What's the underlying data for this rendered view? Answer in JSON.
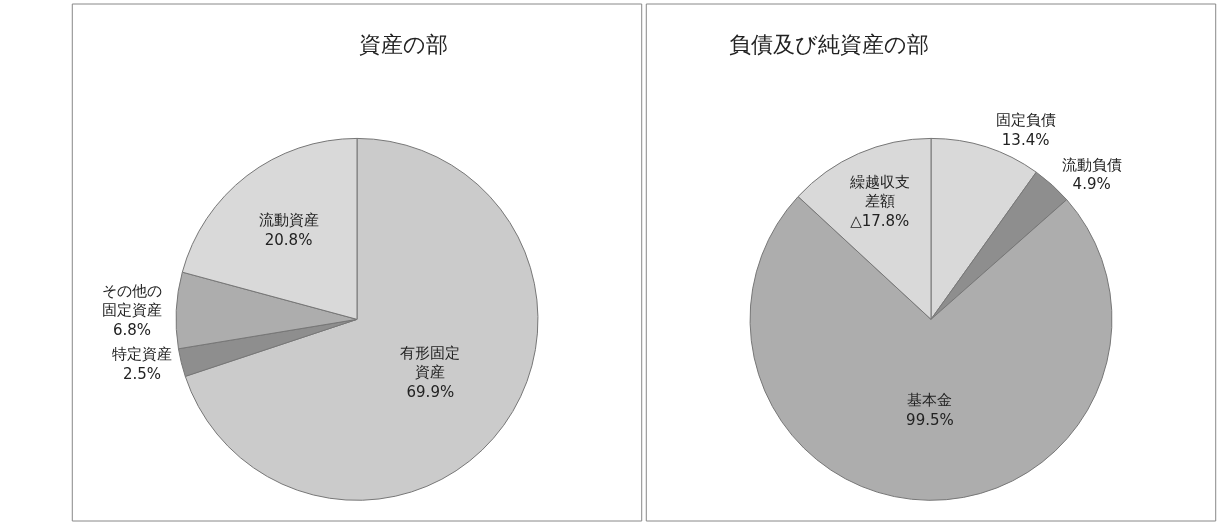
{
  "chart_data": [
    {
      "type": "pie",
      "title": "資産の部",
      "categories": [
        "有形固定資産",
        "特定資産",
        "その他の固定資産",
        "流動資産"
      ],
      "values": [
        69.9,
        2.5,
        6.8,
        20.8
      ],
      "colors": [
        "#cbcbcb",
        "#8e8e8e",
        "#adadad",
        "#d9d9d9"
      ],
      "value_labels": [
        "69.9%",
        "2.5%",
        "6.8%",
        "20.8%"
      ]
    },
    {
      "type": "pie",
      "title": "負債及び純資産の部",
      "categories": [
        "固定負債",
        "流動負債",
        "基本金",
        "繰越収支差額"
      ],
      "values": [
        13.4,
        4.9,
        99.5,
        17.8
      ],
      "colors": [
        "#d9d9d9",
        "#8e8e8e",
        "#adadad",
        "#d9d9d9"
      ],
      "value_labels": [
        "13.4%",
        "4.9%",
        "99.5%",
        "△17.8%"
      ]
    }
  ]
}
